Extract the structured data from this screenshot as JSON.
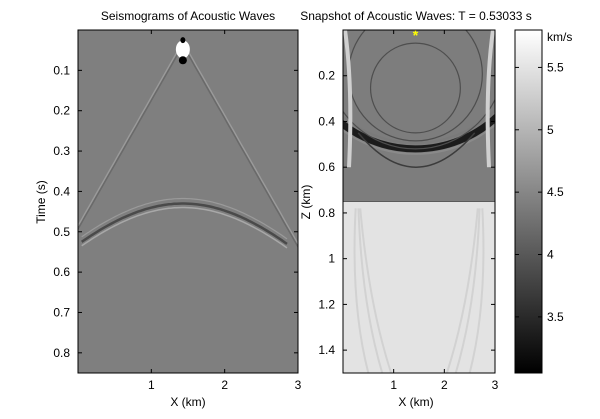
{
  "chart_data": [
    {
      "type": "heatmap",
      "title": "Seismograms of Acoustic Waves",
      "xlabel": "X (km)",
      "ylabel": "Time (s)",
      "xlim": [
        0,
        3
      ],
      "ylim": [
        0.85,
        0.0
      ],
      "xticks": [
        1,
        2,
        3
      ],
      "yticks": [
        0.1,
        0.2,
        0.3,
        0.4,
        0.5,
        0.6,
        0.7,
        0.8
      ],
      "source_x_km": 1.43,
      "direct_wave_apex_time_s": 0.03,
      "direct_wave_edge_time_s": 0.53,
      "reflection_apex_time_s": 0.43,
      "reflection_edge_time_s": 0.53,
      "colormap": "gray"
    },
    {
      "type": "heatmap",
      "title": "Snapshot of Acoustic Waves: T = 0.53033 s",
      "xlabel": "X (km)",
      "ylabel": "Z (km)",
      "xlim": [
        0,
        3
      ],
      "ylim": [
        1.5,
        0.0
      ],
      "xticks": [
        1,
        2,
        3
      ],
      "yticks": [
        0.2,
        0.4,
        0.6,
        0.8,
        1,
        1.2,
        1.4
      ],
      "source_x_km": 1.43,
      "source_z_km": 0.0,
      "source_marker": "*",
      "source_marker_color": "#ffff00",
      "interface_depth_km": 0.75,
      "upper_layer_velocity_km_s": 4.4,
      "lower_layer_velocity_km_s": 5.5,
      "wavefront_bottom_depth_km": 0.52,
      "colormap": "gray"
    },
    {
      "type": "colorbar",
      "label": "km/s",
      "range": [
        3.05,
        5.8
      ],
      "ticks": [
        3.5,
        4,
        4.5,
        5,
        5.5
      ],
      "colormap": "gray"
    }
  ]
}
